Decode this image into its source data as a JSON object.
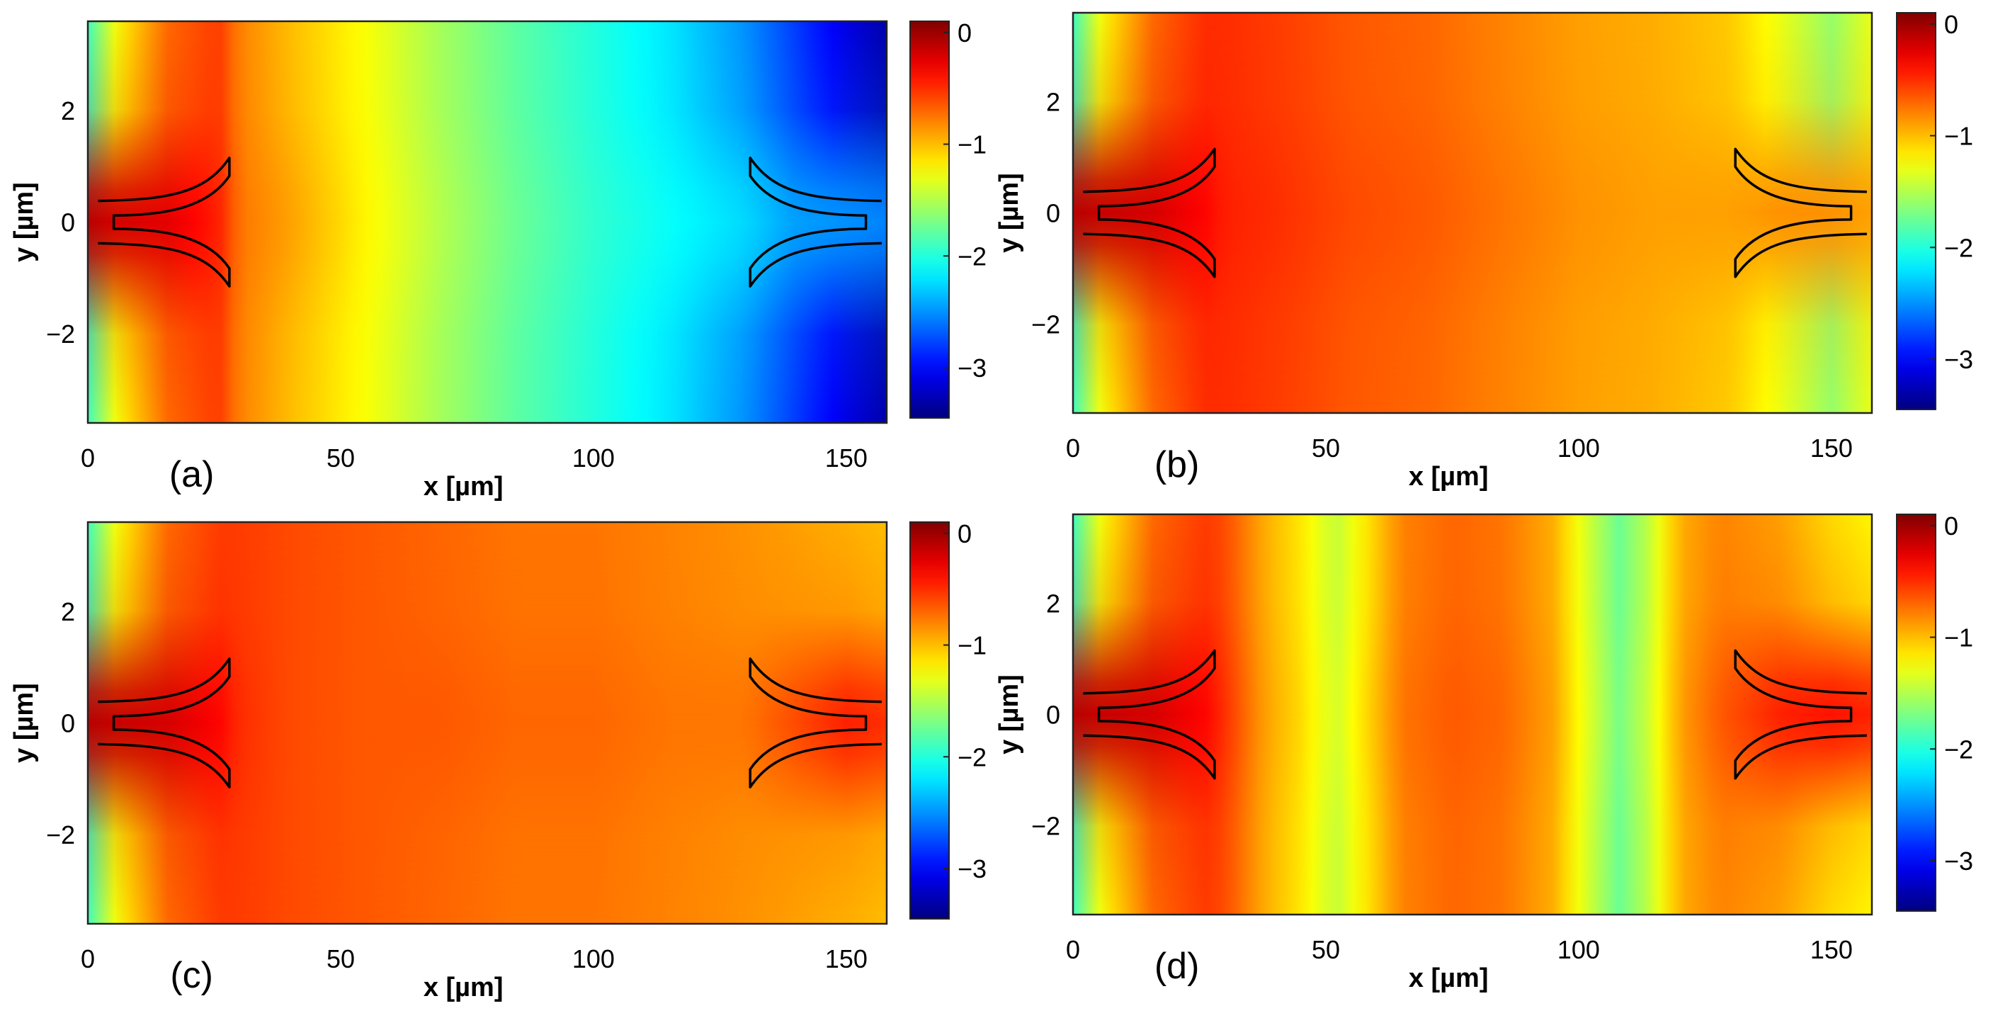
{
  "chart_data": [
    {
      "type": "heatmap",
      "panel_label": "(a)",
      "xlabel": "x [µm]",
      "ylabel": "y [µm]",
      "xlim": [
        0,
        158
      ],
      "ylim": [
        -3.6,
        3.6
      ],
      "xticks": [
        0,
        50,
        100,
        150
      ],
      "xtick_labels": [
        "0",
        "50",
        "100",
        "150"
      ],
      "yticks": [
        2,
        0,
        -2
      ],
      "ytick_labels": [
        "2",
        "0",
        "−2"
      ],
      "clim": [
        -3.45,
        0.1
      ],
      "colorbar_ticks": [
        0,
        -1,
        -2,
        -3
      ],
      "colorbar_labels": [
        "0",
        "−1",
        "−2",
        "−3"
      ],
      "colormap": "jet",
      "profile_x": [
        0,
        6,
        16,
        26,
        30,
        40,
        55,
        70,
        85,
        100,
        115,
        130,
        140,
        150,
        158
      ],
      "profile_center": [
        -0.1,
        -0.2,
        -0.25,
        -0.45,
        -0.75,
        -0.9,
        -1.2,
        -1.5,
        -1.75,
        -1.95,
        -2.1,
        -2.25,
        -2.45,
        -2.5,
        -2.55
      ],
      "profile_edge": [
        -1.9,
        -1.2,
        -0.7,
        -0.55,
        -0.8,
        -1.0,
        -1.25,
        -1.55,
        -1.8,
        -2.0,
        -2.2,
        -2.5,
        -2.8,
        -3.1,
        -3.3
      ],
      "tapers": [
        {
          "x_start": 2,
          "x_end": 28
        },
        {
          "x_start": 131,
          "x_end": 157
        }
      ]
    },
    {
      "type": "heatmap",
      "panel_label": "(b)",
      "xlabel": "x [µm]",
      "ylabel": "y [µm]",
      "xlim": [
        0,
        158
      ],
      "ylim": [
        -3.6,
        3.6
      ],
      "xticks": [
        0,
        50,
        100,
        150
      ],
      "xtick_labels": [
        "0",
        "50",
        "100",
        "150"
      ],
      "yticks": [
        2,
        0,
        -2
      ],
      "ytick_labels": [
        "2",
        "0",
        "−2"
      ],
      "clim": [
        -3.45,
        0.1
      ],
      "colorbar_ticks": [
        0,
        -1,
        -2,
        -3
      ],
      "colorbar_labels": [
        "0",
        "−1",
        "−2",
        "−3"
      ],
      "colormap": "jet",
      "profile_x": [
        0,
        6,
        16,
        26,
        30,
        40,
        55,
        70,
        85,
        100,
        115,
        130,
        140,
        150,
        158
      ],
      "profile_center": [
        -0.1,
        -0.15,
        -0.2,
        -0.35,
        -0.45,
        -0.5,
        -0.6,
        -0.65,
        -0.75,
        -0.85,
        -0.9,
        -0.9,
        -0.85,
        -0.85,
        -0.9
      ],
      "profile_edge": [
        -1.9,
        -1.2,
        -0.7,
        -0.5,
        -0.5,
        -0.55,
        -0.65,
        -0.7,
        -0.8,
        -0.9,
        -0.95,
        -1.05,
        -1.3,
        -1.6,
        -1.3
      ],
      "tapers": [
        {
          "x_start": 2,
          "x_end": 28
        },
        {
          "x_start": 131,
          "x_end": 157
        }
      ]
    },
    {
      "type": "heatmap",
      "panel_label": "(c)",
      "xlabel": "x [µm]",
      "ylabel": "y [µm]",
      "xlim": [
        0,
        158
      ],
      "ylim": [
        -3.6,
        3.6
      ],
      "xticks": [
        0,
        50,
        100,
        150
      ],
      "xtick_labels": [
        "0",
        "50",
        "100",
        "150"
      ],
      "yticks": [
        2,
        0,
        -2
      ],
      "ytick_labels": [
        "2",
        "0",
        "−2"
      ],
      "clim": [
        -3.45,
        0.1
      ],
      "colorbar_ticks": [
        0,
        -1,
        -2,
        -3
      ],
      "colorbar_labels": [
        "0",
        "−1",
        "−2",
        "−3"
      ],
      "colormap": "jet",
      "profile_x": [
        0,
        6,
        16,
        26,
        30,
        40,
        55,
        70,
        85,
        100,
        115,
        130,
        140,
        150,
        158
      ],
      "profile_center": [
        -0.1,
        -0.15,
        -0.2,
        -0.35,
        -0.5,
        -0.6,
        -0.65,
        -0.65,
        -0.7,
        -0.7,
        -0.75,
        -0.75,
        -0.6,
        -0.45,
        -0.5
      ],
      "profile_edge": [
        -1.9,
        -1.2,
        -0.7,
        -0.55,
        -0.55,
        -0.6,
        -0.65,
        -0.7,
        -0.75,
        -0.75,
        -0.8,
        -0.85,
        -0.9,
        -0.95,
        -1.0
      ],
      "tapers": [
        {
          "x_start": 2,
          "x_end": 28
        },
        {
          "x_start": 131,
          "x_end": 157
        }
      ]
    },
    {
      "type": "heatmap",
      "panel_label": "(d)",
      "xlabel": "x [µm]",
      "ylabel": "y [µm]",
      "xlim": [
        0,
        158
      ],
      "ylim": [
        -3.6,
        3.6
      ],
      "xticks": [
        0,
        50,
        100,
        150
      ],
      "xtick_labels": [
        "0",
        "50",
        "100",
        "150"
      ],
      "yticks": [
        2,
        0,
        -2
      ],
      "ytick_labels": [
        "2",
        "0",
        "−2"
      ],
      "clim": [
        -3.45,
        0.1
      ],
      "colorbar_ticks": [
        0,
        -1,
        -2,
        -3
      ],
      "colorbar_labels": [
        "0",
        "−1",
        "−2",
        "−3"
      ],
      "colormap": "jet",
      "profile_x": [
        0,
        6,
        16,
        26,
        30,
        38,
        45,
        52,
        58,
        65,
        75,
        85,
        95,
        102,
        108,
        114,
        120,
        128,
        140,
        150,
        158
      ],
      "profile_center": [
        -0.1,
        -0.15,
        -0.2,
        -0.35,
        -0.5,
        -0.9,
        -1.1,
        -1.4,
        -1.1,
        -0.75,
        -0.65,
        -0.7,
        -0.9,
        -1.35,
        -1.7,
        -1.4,
        -0.9,
        -0.65,
        -0.45,
        -0.4,
        -0.45
      ],
      "profile_edge": [
        -1.9,
        -1.2,
        -0.7,
        -0.55,
        -0.6,
        -0.95,
        -1.15,
        -1.45,
        -1.15,
        -0.8,
        -0.7,
        -0.75,
        -0.95,
        -1.4,
        -1.75,
        -1.45,
        -0.95,
        -0.8,
        -0.9,
        -1.1,
        -1.2
      ],
      "tapers": [
        {
          "x_start": 2,
          "x_end": 28
        },
        {
          "x_start": 131,
          "x_end": 157
        }
      ]
    }
  ]
}
